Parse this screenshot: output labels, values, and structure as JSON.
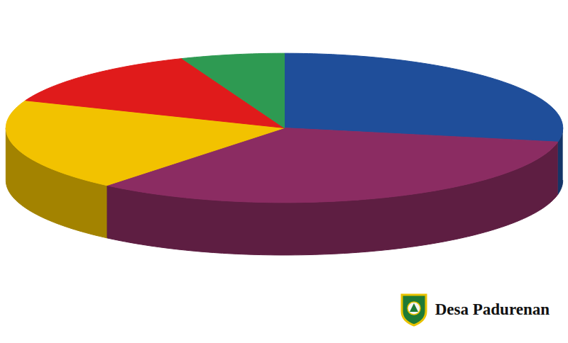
{
  "chart_data": {
    "type": "pie",
    "values": [
      28,
      33,
      20,
      13,
      6
    ],
    "colors": [
      "#1f4e9a",
      "#8b2c62",
      "#f2c200",
      "#e01b1b",
      "#2e9a52"
    ],
    "annotations": [
      "Desa Padurenan"
    ]
  }
}
